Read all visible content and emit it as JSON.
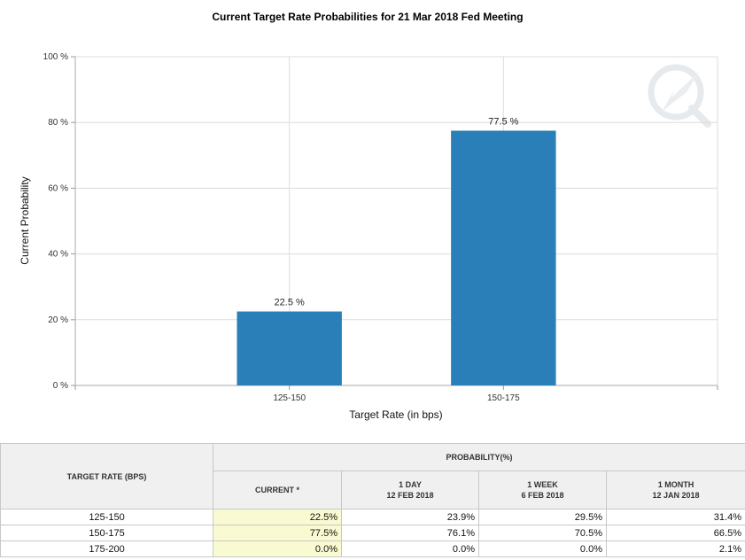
{
  "chart_data": {
    "type": "bar",
    "title": "Current Target Rate Probabilities for 21 Mar 2018 Fed Meeting",
    "xlabel": "Target Rate (in bps)",
    "ylabel": "Current Probability",
    "categories": [
      "125-150",
      "150-175"
    ],
    "values": [
      22.5,
      77.5
    ],
    "data_labels": [
      "22.5 %",
      "77.5 %"
    ],
    "ylim": [
      0,
      100
    ],
    "yticks": [
      "0 %",
      "20 %",
      "40 %",
      "60 %",
      "80 %",
      "100 %"
    ],
    "grid": true,
    "bar_color": "#2b7fb8"
  },
  "table": {
    "col_target": "TARGET RATE (BPS)",
    "col_probability": "PROBABILITY(%)",
    "sub_headers": [
      {
        "line1": "CURRENT *",
        "line2": ""
      },
      {
        "line1": "1 DAY",
        "line2": "12 FEB 2018"
      },
      {
        "line1": "1 WEEK",
        "line2": "6 FEB 2018"
      },
      {
        "line1": "1 MONTH",
        "line2": "12 JAN 2018"
      }
    ],
    "rows": [
      {
        "rate": "125-150",
        "current": "22.5%",
        "day": "23.9%",
        "week": "29.5%",
        "month": "31.4%"
      },
      {
        "rate": "150-175",
        "current": "77.5%",
        "day": "76.1%",
        "week": "70.5%",
        "month": "66.5%"
      },
      {
        "rate": "175-200",
        "current": "0.0%",
        "day": "0.0%",
        "week": "0.0%",
        "month": "2.1%"
      }
    ]
  }
}
